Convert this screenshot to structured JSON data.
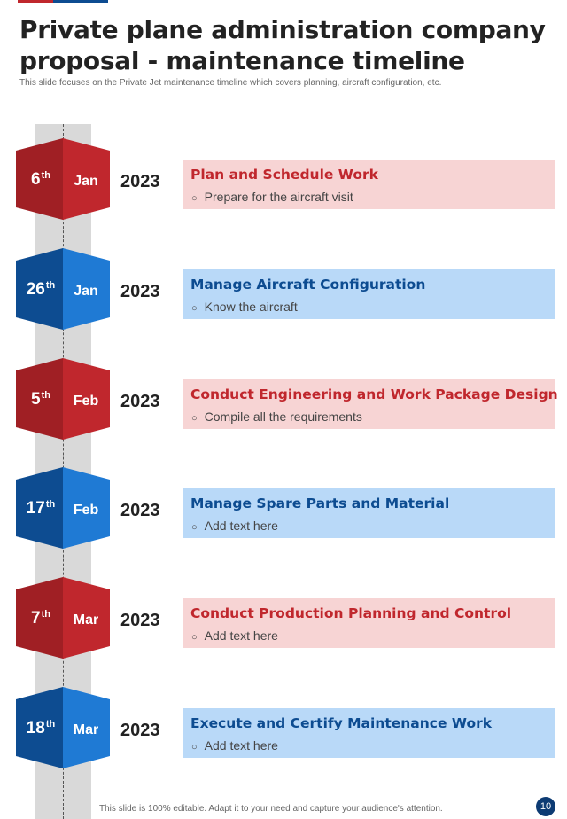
{
  "title": "Private plane administration company proposal - maintenance timeline",
  "subtitle": "This slide focuses on the Private Jet maintenance timeline which covers planning, aircraft configuration, etc.",
  "colors": {
    "red": "#c0272d",
    "red_dark": "#a01f24",
    "red_light": "#f7d4d4",
    "blue": "#1f7ad4",
    "blue_dark": "#0d4c91",
    "blue_light": "#b9d9f8"
  },
  "timeline": [
    {
      "day": "6",
      "suffix": "th",
      "month": "Jan",
      "year": "2023",
      "theme": "red",
      "title": "Plan and Schedule Work",
      "bullet": "Prepare for the aircraft visit"
    },
    {
      "day": "26",
      "suffix": "th",
      "month": "Jan",
      "year": "2023",
      "theme": "blue",
      "title": "Manage Aircraft Configuration",
      "bullet": "Know the aircraft"
    },
    {
      "day": "5",
      "suffix": "th",
      "month": "Feb",
      "year": "2023",
      "theme": "red",
      "title": "Conduct Engineering and Work Package Design",
      "bullet": "Compile all the requirements"
    },
    {
      "day": "17",
      "suffix": "th",
      "month": "Feb",
      "year": "2023",
      "theme": "blue",
      "title": "Manage Spare Parts and Material",
      "bullet": "Add text here"
    },
    {
      "day": "7",
      "suffix": "th",
      "month": "Mar",
      "year": "2023",
      "theme": "red",
      "title": "Conduct Production Planning and Control",
      "bullet": "Add text here"
    },
    {
      "day": "18",
      "suffix": "th",
      "month": "Mar",
      "year": "2023",
      "theme": "blue",
      "title": "Execute and Certify Maintenance Work",
      "bullet": "Add text here"
    }
  ],
  "footer": "This slide is 100% editable. Adapt it to your need and capture your audience's attention.",
  "page_number": "10"
}
